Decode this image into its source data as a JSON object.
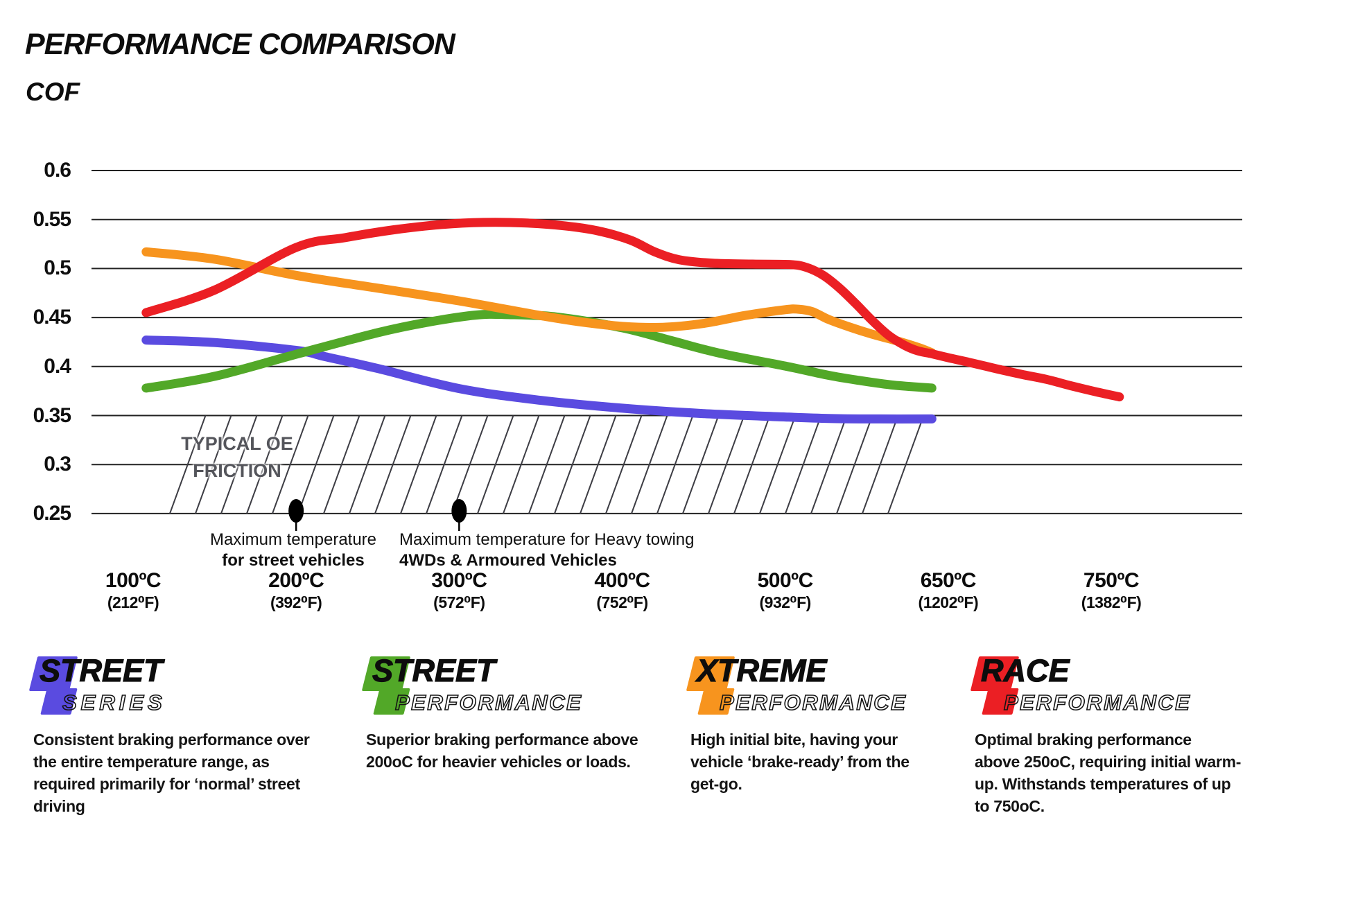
{
  "header": {
    "title": "PERFORMANCE COMPARISON",
    "y_axis_title": "COF"
  },
  "colors": {
    "street_series": "#5A4BE0",
    "street_performance": "#52A828",
    "xtreme_performance": "#F7941E",
    "race_performance": "#EB1F24",
    "gridline": "#222222",
    "hatch": "#3d3d44",
    "oe_text": "#54555B",
    "marker": "#000000"
  },
  "chart_data": {
    "type": "line",
    "title": "PERFORMANCE COMPARISON",
    "ylabel": "COF",
    "ylim": [
      0.25,
      0.6
    ],
    "yticks": [
      0.6,
      0.55,
      0.5,
      0.45,
      0.4,
      0.35,
      0.3,
      0.25
    ],
    "grid": "horizontal-only",
    "x_axis_unit": "temperature",
    "x_ticks": [
      {
        "label": "100ºC",
        "sub": "(212⁰F)",
        "t": 100
      },
      {
        "label": "200ºC",
        "sub": "(392⁰F)",
        "t": 200
      },
      {
        "label": "300ºC",
        "sub": "(572⁰F)",
        "t": 300
      },
      {
        "label": "400ºC",
        "sub": "(752⁰F)",
        "t": 400
      },
      {
        "label": "500ºC",
        "sub": "(932⁰F)",
        "t": 500
      },
      {
        "label": "650ºC",
        "sub": "(1202⁰F)",
        "t": 650
      },
      {
        "label": "750ºC",
        "sub": "(1382⁰F)",
        "t": 750
      }
    ],
    "oe_band": {
      "label": "TYPICAL OE\nFRICTION",
      "cof_from": 0.25,
      "cof_to": 0.35,
      "t_from": 120,
      "t_to": 635
    },
    "annotations": [
      {
        "t": 200,
        "line1": "Maximum temperature",
        "line2": "for street vehicles"
      },
      {
        "t": 300,
        "line1": "Maximum temperature for Heavy towing",
        "line2": "4WDs & Armoured Vehicles"
      }
    ],
    "series": [
      {
        "name": "Street Series",
        "color": "#5A4BE0",
        "points": [
          [
            108,
            0.427
          ],
          [
            150,
            0.4245
          ],
          [
            200,
            0.4165
          ],
          [
            218,
            0.41
          ],
          [
            250,
            0.398
          ],
          [
            300,
            0.3775
          ],
          [
            350,
            0.3655
          ],
          [
            400,
            0.3575
          ],
          [
            450,
            0.352
          ],
          [
            500,
            0.3485
          ],
          [
            540,
            0.347
          ],
          [
            580,
            0.3465
          ],
          [
            635,
            0.3465
          ]
        ]
      },
      {
        "name": "Street Performance",
        "color": "#52A828",
        "points": [
          [
            108,
            0.378
          ],
          [
            150,
            0.39
          ],
          [
            200,
            0.4125
          ],
          [
            250,
            0.4345
          ],
          [
            280,
            0.445
          ],
          [
            310,
            0.4525
          ],
          [
            330,
            0.453
          ],
          [
            360,
            0.4505
          ],
          [
            400,
            0.4395
          ],
          [
            430,
            0.4265
          ],
          [
            460,
            0.4135
          ],
          [
            500,
            0.4005
          ],
          [
            540,
            0.391
          ],
          [
            570,
            0.3855
          ],
          [
            600,
            0.381
          ],
          [
            635,
            0.378
          ]
        ]
      },
      {
        "name": "Xtreme Performance",
        "color": "#F7941E",
        "points": [
          [
            108,
            0.517
          ],
          [
            150,
            0.5095
          ],
          [
            200,
            0.493
          ],
          [
            250,
            0.48
          ],
          [
            300,
            0.467
          ],
          [
            350,
            0.452
          ],
          [
            375,
            0.4455
          ],
          [
            400,
            0.441
          ],
          [
            425,
            0.44
          ],
          [
            450,
            0.444
          ],
          [
            475,
            0.452
          ],
          [
            500,
            0.458
          ],
          [
            512,
            0.4585
          ],
          [
            525,
            0.456
          ],
          [
            540,
            0.448
          ],
          [
            560,
            0.44
          ],
          [
            580,
            0.433
          ],
          [
            605,
            0.4255
          ],
          [
            625,
            0.4185
          ],
          [
            635,
            0.414
          ]
        ]
      },
      {
        "name": "Race Performance",
        "color": "#EB1F24",
        "points": [
          [
            108,
            0.455
          ],
          [
            150,
            0.478
          ],
          [
            200,
            0.5215
          ],
          [
            230,
            0.5315
          ],
          [
            260,
            0.5395
          ],
          [
            290,
            0.545
          ],
          [
            315,
            0.547
          ],
          [
            340,
            0.5465
          ],
          [
            365,
            0.5435
          ],
          [
            385,
            0.5385
          ],
          [
            405,
            0.529
          ],
          [
            420,
            0.517
          ],
          [
            435,
            0.509
          ],
          [
            455,
            0.5055
          ],
          [
            480,
            0.5045
          ],
          [
            505,
            0.504
          ],
          [
            520,
            0.501
          ],
          [
            535,
            0.493
          ],
          [
            550,
            0.48
          ],
          [
            565,
            0.464
          ],
          [
            580,
            0.447
          ],
          [
            595,
            0.432
          ],
          [
            610,
            0.4215
          ],
          [
            622,
            0.416
          ],
          [
            635,
            0.413
          ],
          [
            650,
            0.409
          ],
          [
            665,
            0.4035
          ],
          [
            680,
            0.3975
          ],
          [
            695,
            0.392
          ],
          [
            710,
            0.387
          ],
          [
            725,
            0.3805
          ],
          [
            740,
            0.3745
          ],
          [
            755,
            0.369
          ]
        ]
      }
    ]
  },
  "legends": [
    {
      "word1": "STREET",
      "word2": "SERIES",
      "color": "#5A4BE0",
      "description": "Consistent braking performance over\nthe entire temperature range, as\nrequired primarily for ‘normal’ street\ndriving"
    },
    {
      "word1": "STREET",
      "word2": "PERFORMANCE",
      "color": "#52A828",
      "description": "Superior braking performance above\n200oC for heavier vehicles or loads."
    },
    {
      "word1": "XTREME",
      "word2": "PERFORMANCE",
      "color": "#F7941E",
      "description": "High initial bite, having your\nvehicle ‘brake-ready’ from the\nget-go."
    },
    {
      "word1": "RACE",
      "word2": "PERFORMANCE",
      "color": "#EB1F24",
      "description": "Optimal braking performance\nabove 250oC, requiring initial warm-\nup. Withstands temperatures of up\nto 750oC."
    }
  ]
}
